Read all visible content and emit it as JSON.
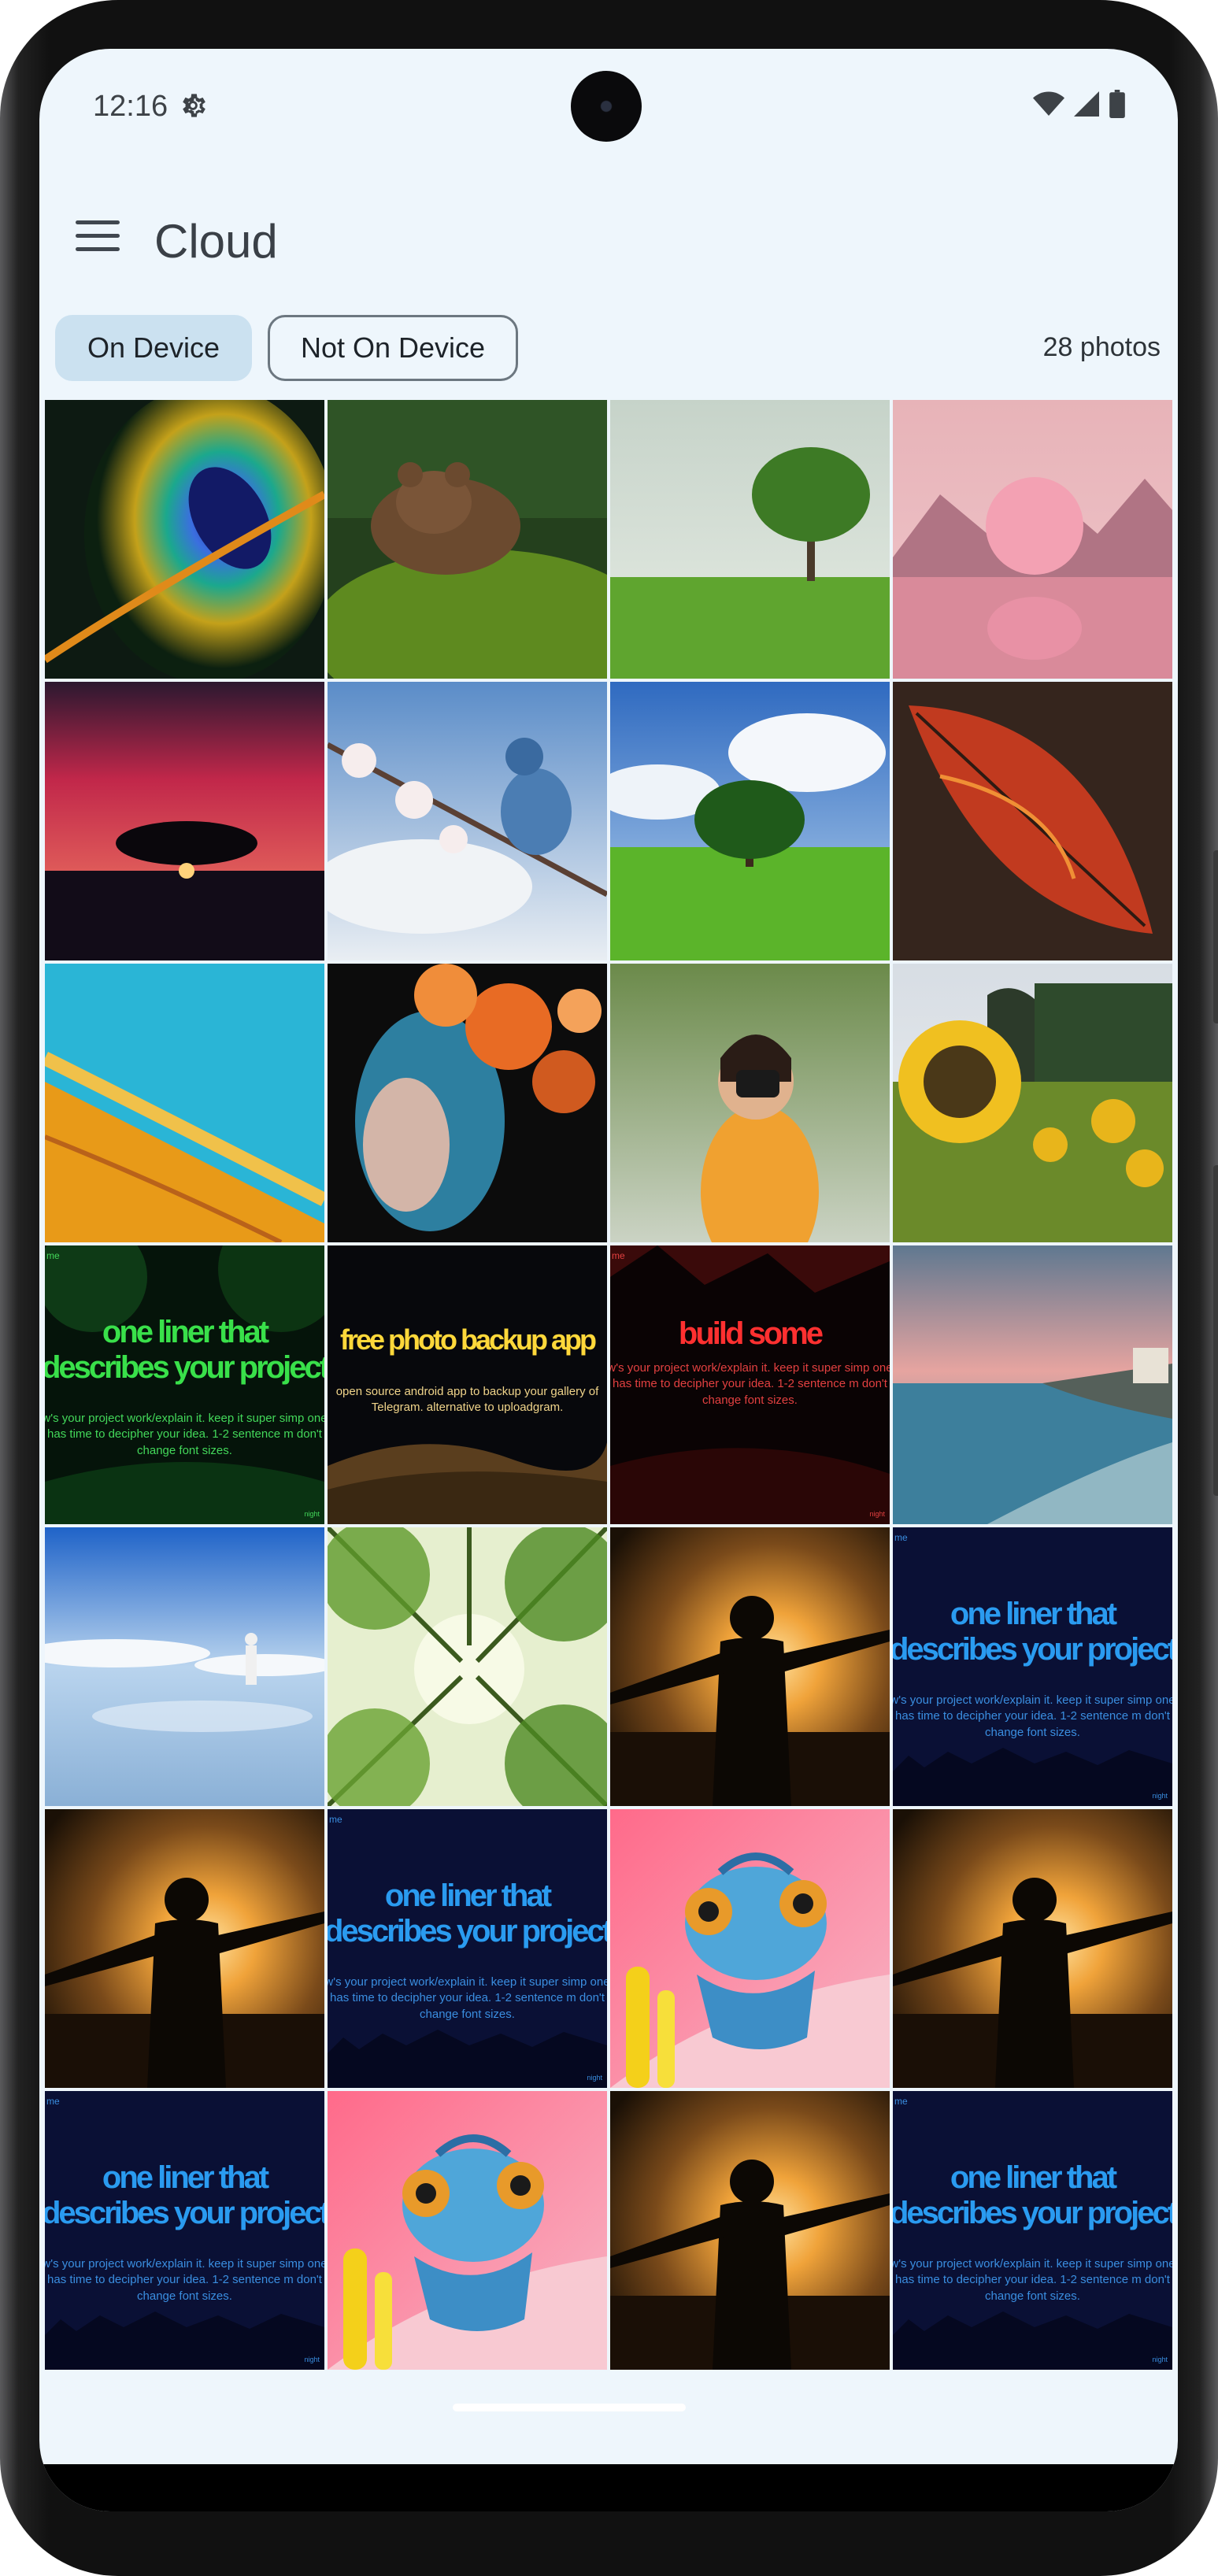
{
  "status_bar": {
    "time": "12:16",
    "icons": [
      "settings-gear-icon",
      "wifi-icon",
      "cell-signal-icon",
      "battery-icon"
    ]
  },
  "app_bar": {
    "menu_icon": "hamburger-menu-icon",
    "title": "Cloud"
  },
  "filters": {
    "on_device_label": "On Device",
    "not_on_device_label": "Not On Device",
    "selected": "On Device",
    "photo_count": "28 photos"
  },
  "theme": {
    "background": "#eef6fc",
    "chip_selected": "#cbe1f0"
  },
  "photos": [
    {
      "subject": "peacock feather"
    },
    {
      "subject": "bear resting on mossy rock"
    },
    {
      "subject": "lone tree on grass field"
    },
    {
      "subject": "pink sphere over water"
    },
    {
      "subject": "tree silhouette at red sunset"
    },
    {
      "subject": "blue bird on blossom branch"
    },
    {
      "subject": "tree on green hill"
    },
    {
      "subject": "red autumn leaf on wood"
    },
    {
      "subject": "aerial turquoise and orange shore"
    },
    {
      "subject": "woman with orange flowers in hair"
    },
    {
      "subject": "woman holding camera"
    },
    {
      "subject": "sunflower field"
    },
    {
      "subject": "green template graphic",
      "tag": "me",
      "headline": "one liner that describes your project",
      "body": "w's your project work/explain it. keep it super simp one has time to decipher your idea. 1-2 sentence m don't change font sizes.",
      "footer": "night"
    },
    {
      "subject": "desert template graphic",
      "headline": "free photo backup app",
      "body": "open source android app to backup your gallery of Telegram. alternative to uploadgram."
    },
    {
      "subject": "red template graphic",
      "tag": "me",
      "headline": "build some",
      "body": "w's your project work/explain it. keep it super simp one has time to decipher your idea. 1-2 sentence m don't change font sizes.",
      "footer": "night"
    },
    {
      "subject": "coastline at dusk"
    },
    {
      "subject": "person walking on salt flat mirror"
    },
    {
      "subject": "forest canopy from below"
    },
    {
      "subject": "silhouette with arms open at sunset"
    },
    {
      "subject": "blue template graphic",
      "tag": "me",
      "headline": "one liner that describes your project",
      "body": "w's your project work/explain it. keep it super simp one has time to decipher your idea. 1-2 sentence m don't change font sizes.",
      "footer": "night"
    },
    {
      "subject": "silhouette with arms open at sunset"
    },
    {
      "subject": "blue template graphic",
      "tag": "me",
      "headline": "one liner that describes your project",
      "body": "w's your project work/explain it. keep it super simp one has time to decipher your idea. 1-2 sentence m don't change font sizes.",
      "footer": "night"
    },
    {
      "subject": "blue chameleon on pink flower"
    },
    {
      "subject": "silhouette with arms open at sunset"
    },
    {
      "subject": "blue template graphic",
      "tag": "me",
      "headline": "one liner that describes your project",
      "body": "w's your project work/explain it. keep it super simp one has time to decipher your idea. 1-2 sentence m don't change font sizes.",
      "footer": "night"
    },
    {
      "subject": "blue chameleon on pink flower"
    },
    {
      "subject": "silhouette with arms open at sunset"
    },
    {
      "subject": "blue template graphic",
      "tag": "me",
      "headline": "one liner that describes your project",
      "body": "w's your project work/explain it. keep it super simp one has time to decipher your idea. 1-2 sentence m don't change font sizes.",
      "footer": "night"
    }
  ]
}
